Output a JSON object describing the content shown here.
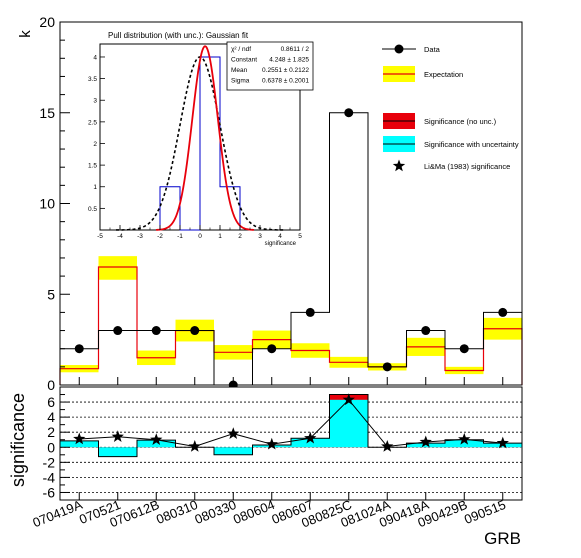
{
  "chart_data": [
    {
      "type": "bar",
      "categories": [
        "070419A",
        "070521",
        "070612B",
        "080310",
        "080330",
        "080604",
        "080607",
        "080825C",
        "081024A",
        "090418A",
        "090429B",
        "090515"
      ],
      "xlabel": "GRB",
      "ylabel": "k",
      "ylim": [
        0,
        20
      ],
      "y_ticks": [
        "0",
        "5",
        "10",
        "15",
        "20"
      ],
      "grid": false,
      "legend_position": "top-right",
      "legend": [
        "Data",
        "Expectation",
        "Significance (no unc.)",
        "Significance with uncertainty",
        "Li&Ma (1983) significance"
      ],
      "series": [
        {
          "name": "Data",
          "values": [
            2,
            3,
            3,
            3,
            0,
            2,
            4,
            15,
            1,
            3,
            2,
            4
          ]
        },
        {
          "name": "Expectation",
          "values": [
            0.9,
            6.5,
            1.5,
            3.0,
            1.8,
            2.5,
            1.9,
            1.25,
            1.0,
            2.1,
            0.8,
            3.1
          ],
          "band_low": [
            0.7,
            5.8,
            1.1,
            2.4,
            1.4,
            2.0,
            1.5,
            0.95,
            0.8,
            1.6,
            0.6,
            2.5
          ],
          "band_high": [
            1.1,
            7.1,
            1.9,
            3.6,
            2.2,
            3.0,
            2.3,
            1.55,
            1.2,
            2.6,
            1.0,
            3.7
          ]
        }
      ]
    },
    {
      "type": "bar",
      "categories": [
        "070419A",
        "070521",
        "070612B",
        "080310",
        "080330",
        "080604",
        "080607",
        "080825C",
        "081024A",
        "090418A",
        "090429B",
        "090515"
      ],
      "ylabel": "significance",
      "ylim": [
        -7,
        8
      ],
      "y_ticks": [
        "-6",
        "-4",
        "-2",
        "0",
        "2",
        "4",
        "6"
      ],
      "grid": true,
      "series": [
        {
          "name": "Significance (no unc.)",
          "values": [
            0.85,
            -1.25,
            0.95,
            0.0,
            -1.0,
            0.3,
            1.2,
            7.0,
            0.0,
            0.55,
            1.0,
            0.55
          ]
        },
        {
          "name": "Significance with uncertainty",
          "values": [
            0.85,
            -1.25,
            0.95,
            0.0,
            -1.0,
            0.3,
            1.2,
            6.3,
            0.0,
            0.55,
            1.0,
            0.55
          ]
        },
        {
          "name": "Li&Ma (1983) significance",
          "values": [
            1.1,
            1.4,
            1.0,
            0.1,
            1.8,
            0.4,
            1.2,
            6.3,
            0.1,
            0.7,
            1.05,
            0.55
          ]
        }
      ]
    },
    {
      "type": "bar",
      "title": "Pull distribution (with unc.): Gaussian fit",
      "xlabel": "significance",
      "xlim": [
        -5,
        5
      ],
      "ylim": [
        0,
        4.3
      ],
      "x_ticks": [
        "-5",
        "-4",
        "-3",
        "-2",
        "-1",
        "0",
        "1",
        "2",
        "3",
        "4",
        "5"
      ],
      "y_ticks": [
        "0.5",
        "1",
        "1.5",
        "2",
        "2.5",
        "3",
        "3.5",
        "4"
      ],
      "histogram": {
        "bin_edges": [
          -2,
          -1,
          0,
          1,
          2
        ],
        "counts": [
          1,
          0,
          4,
          1
        ]
      },
      "gauss_fit": {
        "constant": 4.248,
        "mean": 0.2551,
        "sigma": 0.6378
      },
      "gauss_ref": {
        "constant": 4.0,
        "mean": 0.0,
        "sigma": 1.0
      },
      "stats": [
        {
          "label": "χ² / ndf",
          "value": "0.8611 / 2"
        },
        {
          "label": "Constant",
          "value": "4.248 ± 1.825"
        },
        {
          "label": "Mean",
          "value": "0.2551 ± 0.2122"
        },
        {
          "label": "Sigma",
          "value": "0.6378 ± 0.2001"
        }
      ]
    }
  ],
  "colors": {
    "data": "#000000",
    "expectation_line": "#e8000b",
    "expectation_band": "#ffff00",
    "significance_no_unc": "#e8000b",
    "significance_with_unc": "#00ffff",
    "inset_hist": "#0000cc",
    "inset_fit": "#e8000b"
  }
}
